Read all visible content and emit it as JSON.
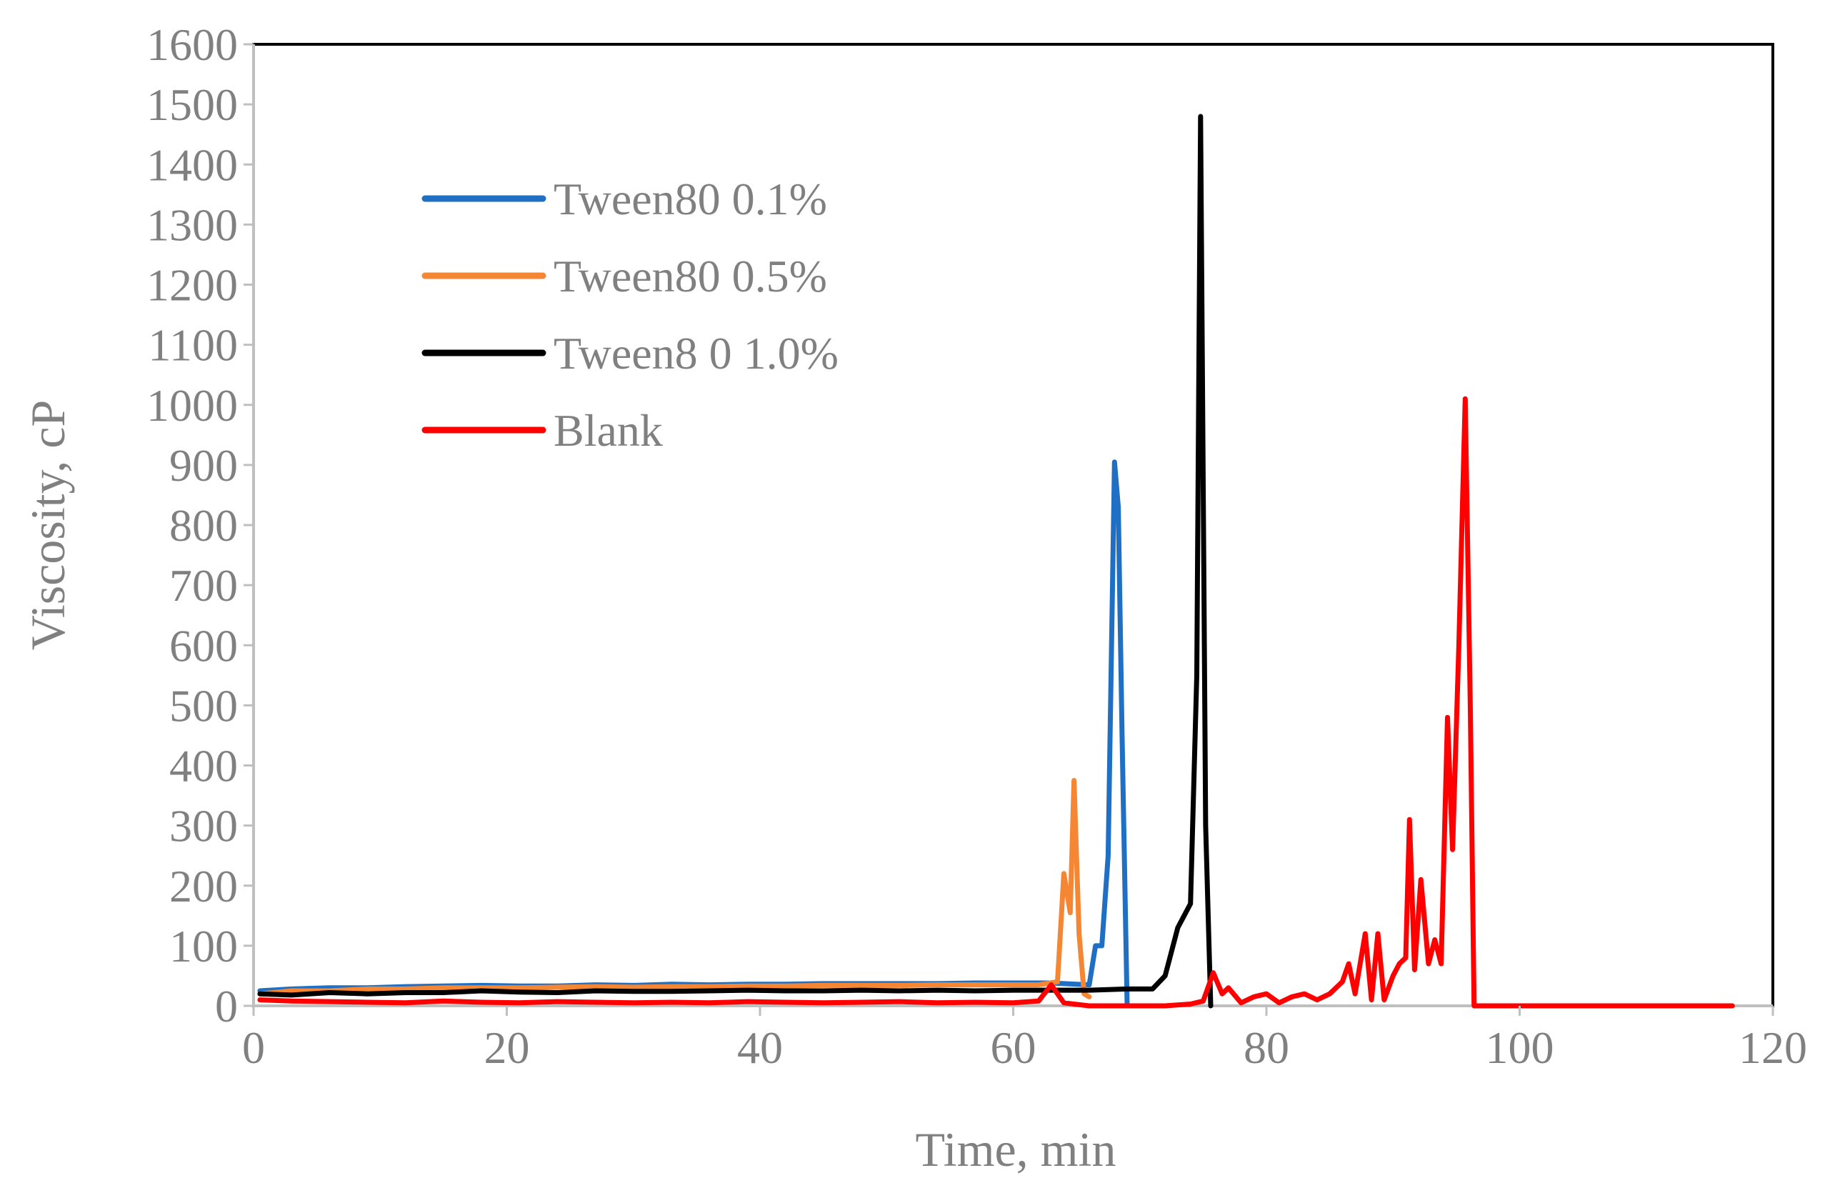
{
  "chart_data": {
    "type": "line",
    "title": "",
    "xlabel": "Time, min",
    "ylabel": "Viscosity, cP",
    "xlim": [
      0,
      120
    ],
    "ylim": [
      0,
      1600
    ],
    "xticks": [
      0,
      20,
      40,
      60,
      80,
      100,
      120
    ],
    "yticks": [
      0,
      100,
      200,
      300,
      400,
      500,
      600,
      700,
      800,
      900,
      1000,
      1100,
      1200,
      1300,
      1400,
      1500,
      1600
    ],
    "grid": false,
    "legend_position": "top-left",
    "series": [
      {
        "name": "Tween80 0.1%",
        "color": "#1f6fc4",
        "x": [
          0.5,
          3,
          6,
          9,
          12,
          15,
          18,
          21,
          24,
          27,
          30,
          33,
          36,
          39,
          42,
          45,
          48,
          51,
          54,
          57,
          60,
          63,
          65,
          66,
          66.5,
          67,
          67.5,
          68,
          68.3,
          68.6,
          69,
          69.5,
          70
        ],
        "y": [
          25,
          28,
          30,
          30,
          32,
          33,
          34,
          33,
          33,
          35,
          34,
          36,
          35,
          36,
          36,
          37,
          37,
          37,
          37,
          38,
          38,
          38,
          36,
          35,
          100,
          100,
          250,
          905,
          830,
          450,
          0,
          0,
          0
        ]
      },
      {
        "name": "Tween80 0.5%",
        "color": "#f58634",
        "x": [
          0.5,
          3,
          6,
          9,
          12,
          15,
          18,
          21,
          24,
          27,
          30,
          33,
          36,
          39,
          42,
          45,
          48,
          51,
          54,
          57,
          60,
          62,
          63.5,
          64,
          64.5,
          64.8,
          65.2,
          65.6,
          66
        ],
        "y": [
          20,
          25,
          25,
          28,
          28,
          30,
          30,
          30,
          31,
          32,
          31,
          32,
          32,
          33,
          33,
          34,
          34,
          34,
          35,
          35,
          35,
          35,
          40,
          220,
          155,
          375,
          120,
          20,
          15
        ]
      },
      {
        "name": "Tween8 0 1.0%",
        "color": "#000000",
        "x": [
          0.5,
          3,
          6,
          9,
          12,
          15,
          18,
          21,
          24,
          27,
          30,
          33,
          36,
          39,
          42,
          45,
          48,
          51,
          54,
          57,
          60,
          63,
          66,
          69,
          71,
          72,
          73,
          74,
          74.5,
          74.8,
          75.2,
          75.6
        ],
        "y": [
          20,
          18,
          22,
          20,
          22,
          22,
          25,
          23,
          22,
          25,
          24,
          24,
          25,
          26,
          25,
          25,
          26,
          25,
          26,
          25,
          26,
          26,
          26,
          28,
          28,
          50,
          130,
          170,
          550,
          1480,
          300,
          0
        ]
      },
      {
        "name": "Blank",
        "color": "#ff0000",
        "x": [
          0.5,
          3,
          6,
          9,
          12,
          15,
          18,
          21,
          24,
          27,
          30,
          33,
          36,
          39,
          42,
          45,
          48,
          51,
          54,
          57,
          60,
          62,
          63,
          64,
          66,
          68,
          70,
          72,
          74,
          75,
          75.8,
          76.5,
          77,
          78,
          79,
          80,
          81,
          82,
          83,
          84,
          85,
          86,
          86.5,
          87,
          87.8,
          88.3,
          88.8,
          89.3,
          90,
          90.5,
          91,
          91.3,
          91.7,
          92.2,
          92.8,
          93.3,
          93.8,
          94.3,
          94.7,
          95.2,
          95.7,
          96.1,
          96.4,
          96.7,
          100,
          110,
          116.8
        ],
        "y": [
          10,
          8,
          7,
          6,
          5,
          8,
          6,
          5,
          7,
          6,
          5,
          6,
          5,
          7,
          6,
          5,
          6,
          7,
          5,
          6,
          5,
          8,
          35,
          5,
          0,
          0,
          0,
          0,
          3,
          8,
          55,
          20,
          30,
          5,
          15,
          20,
          5,
          15,
          20,
          10,
          20,
          40,
          70,
          20,
          120,
          10,
          120,
          10,
          50,
          70,
          80,
          310,
          60,
          210,
          70,
          110,
          70,
          480,
          260,
          600,
          1010,
          500,
          0,
          0,
          0,
          0,
          0
        ]
      }
    ]
  }
}
